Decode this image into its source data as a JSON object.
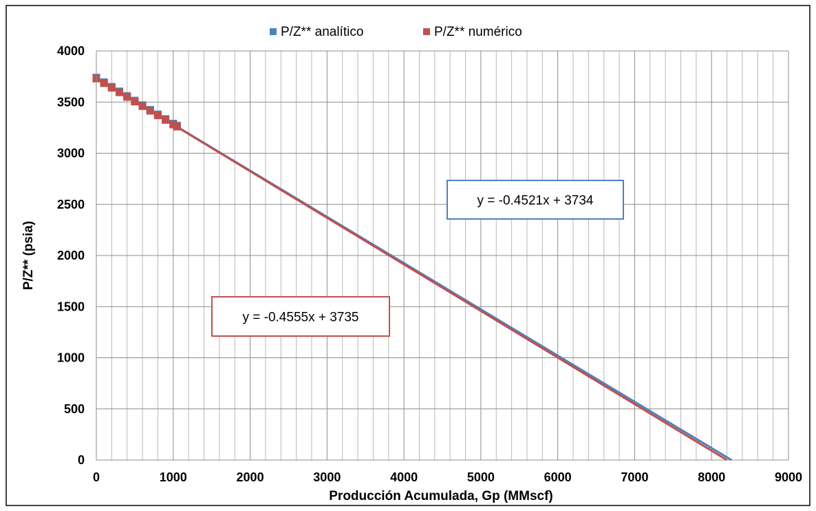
{
  "chart_data": {
    "type": "scatter",
    "xlabel": "Producción Acumulada, Gp (MMscf)",
    "ylabel": "P/Z** (psia)",
    "xlim": [
      0,
      9000
    ],
    "ylim": [
      0,
      4000
    ],
    "x_ticks": [
      0,
      1000,
      2000,
      3000,
      4000,
      5000,
      6000,
      7000,
      8000,
      9000
    ],
    "y_ticks": [
      0,
      500,
      1000,
      1500,
      2000,
      2500,
      3000,
      3500,
      4000
    ],
    "x_tick_labels": [
      "0",
      "1000",
      "2000",
      "3000",
      "4000",
      "5000",
      "6000",
      "7000",
      "8000",
      "9000"
    ],
    "y_tick_labels": [
      "0",
      "500",
      "1000",
      "1500",
      "2000",
      "2500",
      "3000",
      "3500",
      "4000"
    ],
    "grid": true,
    "legend_position": "top-center",
    "series": [
      {
        "name": "P/Z** analítico",
        "color": "#4f81bd",
        "marker": "square",
        "points": [
          [
            0,
            3740
          ],
          [
            100,
            3695
          ],
          [
            200,
            3650
          ],
          [
            300,
            3605
          ],
          [
            400,
            3560
          ],
          [
            500,
            3515
          ],
          [
            600,
            3470
          ],
          [
            700,
            3425
          ],
          [
            800,
            3380
          ],
          [
            900,
            3335
          ],
          [
            1000,
            3290
          ],
          [
            1050,
            3270
          ]
        ],
        "trendline": {
          "slope": -0.4521,
          "intercept": 3734,
          "x_end": 8260,
          "equation": "y = -0.4521x + 3734"
        }
      },
      {
        "name": "P/Z** numérico",
        "color": "#c0504d",
        "marker": "square",
        "points": [
          [
            0,
            3730
          ],
          [
            100,
            3685
          ],
          [
            200,
            3640
          ],
          [
            300,
            3595
          ],
          [
            400,
            3550
          ],
          [
            500,
            3505
          ],
          [
            600,
            3460
          ],
          [
            700,
            3415
          ],
          [
            800,
            3370
          ],
          [
            900,
            3325
          ],
          [
            1000,
            3280
          ],
          [
            1050,
            3260
          ]
        ],
        "trendline": {
          "slope": -0.4555,
          "intercept": 3735,
          "x_end": 8200,
          "equation": "y = -0.4555x + 3735"
        }
      }
    ]
  }
}
